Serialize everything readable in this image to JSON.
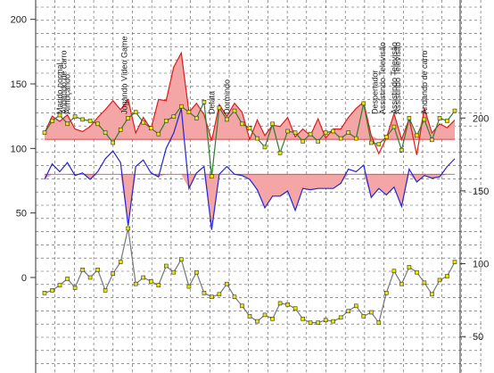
{
  "chart_data": {
    "type": "line",
    "title": "",
    "grid": true,
    "left_axis": {
      "ticks": [
        0,
        50,
        100,
        150,
        200
      ],
      "range": [
        -74,
        215
      ]
    },
    "right_axis": {
      "ticks": [
        50,
        100,
        150,
        200
      ],
      "range": [
        25,
        281
      ]
    },
    "threshold_top": 107,
    "threshold_bottom": 80,
    "events": [
      {
        "x": 4,
        "label": "Marido normal"
      },
      {
        "x": 5,
        "label": "Andando de carro"
      },
      {
        "x": 6,
        "label": "Almoçando"
      },
      {
        "x": 21,
        "label": "Jogando Vídeo Game"
      },
      {
        "x": 44,
        "label": "Delata"
      },
      {
        "x": 48,
        "label": "Dormindo"
      },
      {
        "x": 87,
        "label": "Despertador"
      },
      {
        "x": 89,
        "label": "Assistindo Televisão"
      },
      {
        "x": 92,
        "label": "Assistindo Televisão"
      },
      {
        "x": 93,
        "label": "Assistindo Televisão"
      },
      {
        "x": 100,
        "label": "Andando de carro"
      }
    ],
    "series": [
      {
        "color": "#e01a1a",
        "fill": "#f4a5a5",
        "axis": "left",
        "x": [
          0,
          2,
          4,
          6,
          8,
          10,
          12,
          14,
          16,
          18,
          20,
          22,
          24,
          26,
          28,
          30,
          32,
          34,
          36,
          38,
          40,
          42,
          44,
          46,
          48,
          50,
          52,
          54,
          56,
          58,
          60,
          62,
          64,
          66,
          68,
          70,
          72,
          74,
          76,
          78,
          80,
          82,
          84,
          86,
          88,
          90,
          92,
          94,
          96,
          98,
          100,
          102,
          104,
          106,
          108
        ],
        "values": [
          112,
          125,
          121,
          126,
          115,
          113,
          117,
          124,
          130,
          137,
          130,
          138,
          112,
          124,
          115,
          138,
          137,
          163,
          174,
          128,
          135,
          126,
          106,
          134,
          125,
          135,
          128,
          107,
          122,
          110,
          118,
          117,
          124,
          109,
          115,
          110,
          123,
          108,
          115,
          115,
          124,
          131,
          136,
          110,
          96,
          108,
          127,
          107,
          123,
          95,
          131,
          112,
          119,
          116,
          122
        ]
      },
      {
        "color": "#2424d8",
        "axis": "left",
        "x": [
          0,
          2,
          4,
          6,
          8,
          10,
          12,
          14,
          16,
          18,
          20,
          22,
          24,
          26,
          28,
          30,
          32,
          34,
          36,
          38,
          40,
          42,
          44,
          46,
          48,
          50,
          52,
          54,
          56,
          58,
          60,
          62,
          64,
          66,
          68,
          70,
          72,
          74,
          76,
          78,
          80,
          82,
          84,
          86,
          88,
          90,
          92,
          94,
          96,
          98,
          100,
          102,
          104,
          106,
          108
        ],
        "values": [
          76,
          88,
          82,
          89,
          79,
          81,
          76,
          82,
          92,
          98,
          89,
          40,
          86,
          91,
          81,
          78,
          100,
          112,
          131,
          69,
          81,
          86,
          37,
          80,
          86,
          80,
          79,
          76,
          68,
          54,
          63,
          63,
          67,
          52,
          69,
          68,
          69,
          69,
          69,
          73,
          84,
          82,
          87,
          62,
          69,
          64,
          70,
          55,
          84,
          74,
          79,
          77,
          78,
          86,
          92
        ]
      },
      {
        "color": "#2e7d2e",
        "marker": "#e6e600",
        "axis": "right",
        "x": [
          0,
          2,
          4,
          6,
          8,
          10,
          12,
          14,
          16,
          18,
          20,
          22,
          24,
          26,
          28,
          30,
          32,
          34,
          36,
          38,
          40,
          42,
          44,
          46,
          48,
          50,
          52,
          54,
          56,
          58,
          60,
          62,
          64,
          66,
          68,
          70,
          72,
          74,
          76,
          78,
          80,
          82,
          84,
          86,
          88,
          90,
          92,
          94,
          96,
          98,
          100,
          102,
          104,
          106,
          108
        ],
        "values": [
          190,
          198,
          202,
          196,
          201,
          199,
          198,
          196,
          190,
          183,
          192,
          200,
          204,
          197,
          193,
          189,
          198,
          201,
          208,
          204,
          200,
          211,
          160,
          207,
          199,
          205,
          196,
          193,
          186,
          180,
          196,
          176,
          191,
          190,
          184,
          189,
          184,
          190,
          191,
          186,
          190,
          186,
          210,
          183,
          182,
          187,
          194,
          178,
          200,
          188,
          199,
          185,
          200,
          198,
          205
        ]
      },
      {
        "color": "#777777",
        "marker": "#e6e600",
        "axis": "left",
        "x": [
          0,
          2,
          4,
          6,
          8,
          10,
          12,
          14,
          16,
          18,
          20,
          22,
          24,
          26,
          28,
          30,
          32,
          34,
          36,
          38,
          40,
          42,
          44,
          46,
          48,
          50,
          52,
          54,
          56,
          58,
          60,
          62,
          64,
          66,
          68,
          70,
          72,
          74,
          76,
          78,
          80,
          82,
          84,
          86,
          88,
          90,
          92,
          94,
          96,
          98,
          100,
          102,
          104,
          106,
          108
        ],
        "values": [
          -12,
          -10,
          -6,
          -1,
          -8,
          6,
          0,
          6,
          -10,
          3,
          12,
          38,
          -5,
          0,
          -3,
          -6,
          9,
          4,
          14,
          -7,
          4,
          -12,
          -15,
          -13,
          -5,
          -15,
          -22,
          -30,
          -34,
          -29,
          -32,
          -20,
          -21,
          -24,
          -32,
          -35,
          -35,
          -33,
          -34,
          -31,
          -26,
          -22,
          -30,
          -27,
          -35,
          -12,
          5,
          -5,
          8,
          4,
          -4,
          -13,
          -2,
          1,
          12
        ]
      }
    ]
  }
}
